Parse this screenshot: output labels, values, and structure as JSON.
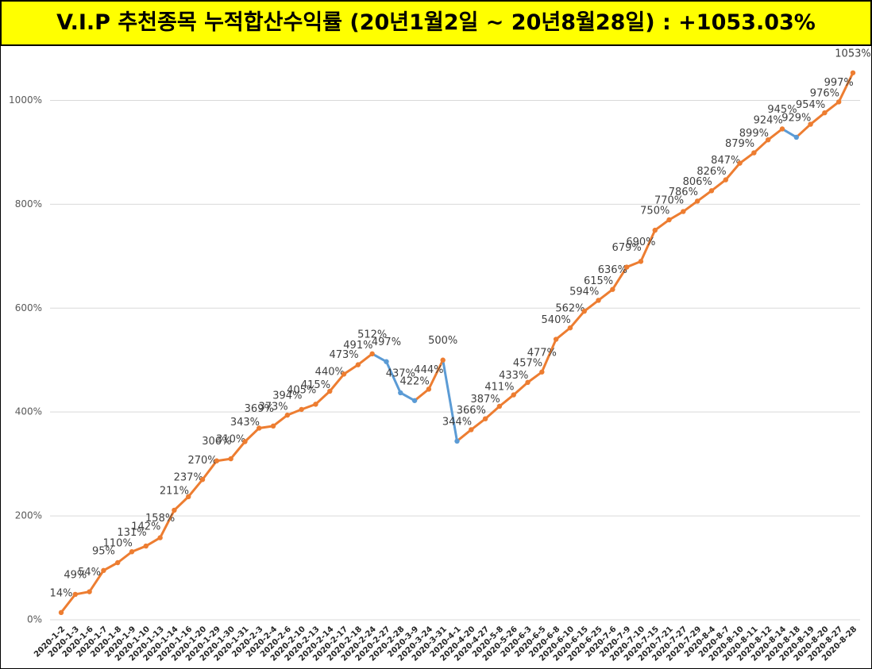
{
  "chart_data": {
    "type": "line",
    "title": "V.I.P 추천종목 누적합산수익률 (20년1월2일 ~ 20년8월28일) : +1053.03%",
    "categories": [
      "2020-1-2",
      "2020-1-3",
      "2020-1-6",
      "2020-1-7",
      "2020-1-8",
      "2020-1-9",
      "2020-1-10",
      "2020-1-13",
      "2020-1-14",
      "2020-1-16",
      "2020-1-20",
      "2020-1-29",
      "2020-1-30",
      "2020-1-31",
      "2020-2-3",
      "2020-2-4",
      "2020-2-6",
      "2020-2-10",
      "2020-2-13",
      "2020-2-14",
      "2020-2-17",
      "2020-2-18",
      "2020-2-24",
      "2020-2-27",
      "2020-2-28",
      "2020-3-9",
      "2020-3-24",
      "2020-3-31",
      "2020-4-1",
      "2020-4-20",
      "2020-4-27",
      "2020-5-8",
      "2020-5-26",
      "2020-6-3",
      "2020-6-5",
      "2020-6-8",
      "2020-6-10",
      "2020-6-15",
      "2020-6-25",
      "2020-7-6",
      "2020-7-9",
      "2020-7-10",
      "2020-7-15",
      "2020-7-21",
      "2020-7-27",
      "2020-7-29",
      "2020-8-4",
      "2020-8-7",
      "2020-8-10",
      "2020-8-11",
      "2020-8-12",
      "2020-8-14",
      "2020-8-18",
      "2020-8-19",
      "2020-8-20",
      "2020-8-27",
      "2020-8-28"
    ],
    "values": [
      14,
      49,
      54,
      95,
      110,
      131,
      142,
      158,
      211,
      237,
      270,
      306,
      310,
      343,
      369,
      373,
      394,
      405,
      415,
      440,
      473,
      491,
      512,
      497,
      437,
      422,
      444,
      500,
      344,
      366,
      387,
      411,
      433,
      457,
      477,
      540,
      562,
      594,
      615,
      636,
      679,
      690,
      750,
      770,
      786,
      806,
      826,
      847,
      879,
      899,
      924,
      945,
      929,
      954,
      976,
      997,
      1053
    ],
    "value_labels": [
      "14%",
      "49%",
      "54%",
      "95%",
      "110%",
      "131%",
      "142%",
      "158%",
      "211%",
      "237%",
      "270%",
      "306%",
      "310%",
      "343%",
      "369%",
      "373%",
      "394%",
      "405%",
      "415%",
      "440%",
      "473%",
      "491%",
      "512%",
      "497%",
      "437%",
      "422%",
      "444%",
      "500%",
      "344%",
      "366%",
      "387%",
      "411%",
      "433%",
      "457%",
      "477%",
      "540%",
      "562%",
      "594%",
      "615%",
      "636%",
      "679%",
      "690%",
      "750%",
      "770%",
      "786%",
      "806%",
      "826%",
      "847%",
      "879%",
      "899%",
      "924%",
      "945%",
      "929%",
      "954%",
      "976%",
      "997%",
      "1053%"
    ],
    "color": "#ed7d31",
    "down_color": "#5b9bd5",
    "ylim": [
      0,
      1100
    ],
    "yticks": [
      {
        "value": 0,
        "label": "0%"
      },
      {
        "value": 200,
        "label": "200%"
      },
      {
        "value": 400,
        "label": "400%"
      },
      {
        "value": 600,
        "label": "600%"
      },
      {
        "value": 800,
        "label": "800%"
      },
      {
        "value": 1000,
        "label": "1000%"
      }
    ],
    "grid": true
  }
}
